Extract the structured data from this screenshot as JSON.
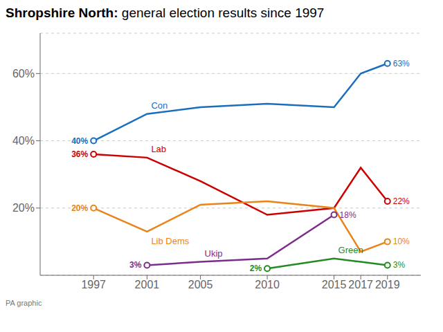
{
  "chart_data": {
    "type": "line",
    "title": "Shropshire North: general election results since 1997",
    "annotations": [
      "PA graphic"
    ],
    "x": [
      1997,
      2001,
      2005,
      2010,
      2015,
      2017,
      2019
    ],
    "xlim": [
      1993,
      2021.5
    ],
    "xticks": [
      1997,
      2001,
      2005,
      2010,
      2015,
      2017,
      2019
    ],
    "ylim": [
      0,
      72
    ],
    "yticks": [
      {
        "value": 20,
        "label": "20%"
      },
      {
        "value": 40,
        "label": "40%"
      },
      {
        "value": 60,
        "label": "60%"
      }
    ],
    "grid": true,
    "marker": "circle",
    "series": [
      {
        "name": "Con",
        "color": "#1a6ebf",
        "values": [
          40,
          48,
          50,
          51,
          50,
          60,
          63
        ],
        "value_labels": [
          "40%",
          null,
          null,
          null,
          null,
          null,
          "63%"
        ]
      },
      {
        "name": "Lab",
        "color": "#cc0000",
        "values": [
          36,
          35,
          28,
          18,
          20,
          32,
          22
        ],
        "value_labels": [
          "36%",
          null,
          null,
          null,
          null,
          null,
          "22%"
        ]
      },
      {
        "name": "Lib Dems",
        "color": "#e8841a",
        "values": [
          20,
          13,
          21,
          22,
          20,
          7,
          10
        ],
        "value_labels": [
          "20%",
          null,
          null,
          null,
          null,
          null,
          "10%"
        ]
      },
      {
        "name": "Ukip",
        "color": "#7b2d8b",
        "values": [
          null,
          3,
          4,
          5,
          18,
          null,
          null
        ],
        "value_labels": [
          null,
          "3%",
          null,
          null,
          "18%",
          null,
          null
        ]
      },
      {
        "name": "Green",
        "color": "#228B22",
        "values": [
          null,
          null,
          null,
          2,
          5,
          4,
          3
        ],
        "value_labels": [
          null,
          null,
          null,
          "2%",
          null,
          null,
          "3%"
        ]
      }
    ]
  }
}
